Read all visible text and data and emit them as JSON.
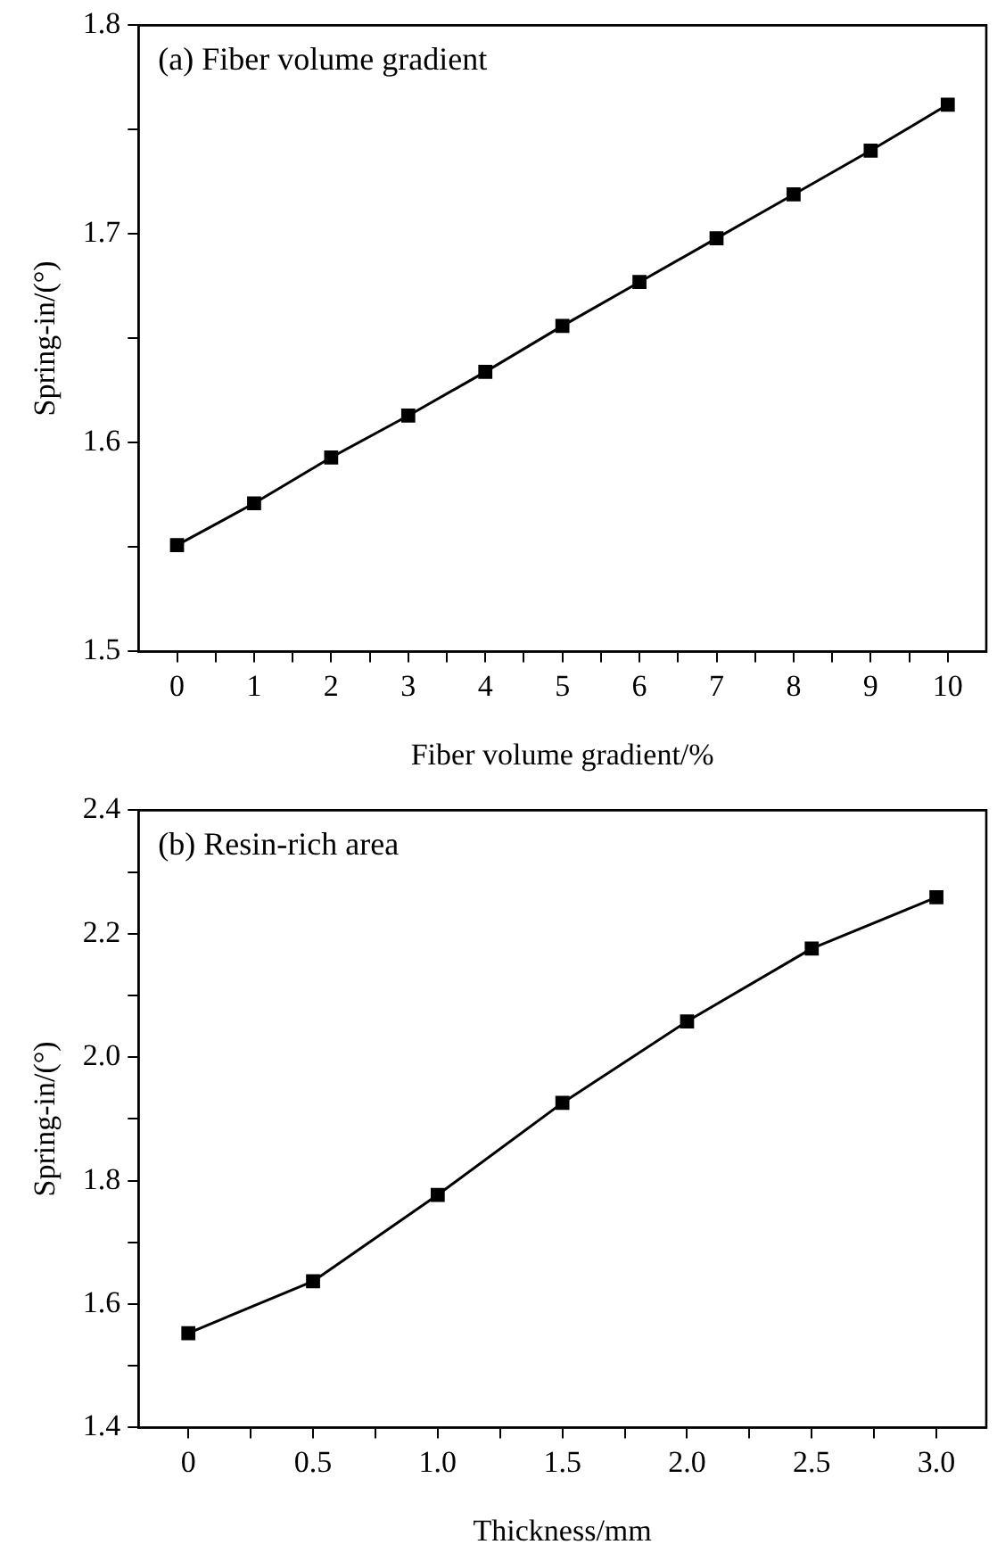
{
  "chart_data": [
    {
      "type": "line",
      "title": "(a) Fiber volume gradient",
      "xlabel": "Fiber volume gradient/%",
      "ylabel": "Spring-in/(°)",
      "x": [
        0,
        1,
        2,
        3,
        4,
        5,
        6,
        7,
        8,
        9,
        10
      ],
      "series": [
        {
          "color": "#000000",
          "values": [
            1.551,
            1.571,
            1.593,
            1.613,
            1.634,
            1.656,
            1.677,
            1.698,
            1.719,
            1.74,
            1.762
          ]
        }
      ],
      "xlim": [
        -0.5,
        10.5
      ],
      "xticks": [
        0,
        {
          "value": 0.5,
          "label": null
        },
        1,
        {
          "value": 1.5,
          "label": null
        },
        2,
        {
          "value": 2.5,
          "label": null
        },
        3,
        {
          "value": 3.5,
          "label": null
        },
        4,
        {
          "value": 4.5,
          "label": null
        },
        5,
        {
          "value": 5.5,
          "label": null
        },
        6,
        {
          "value": 6.5,
          "label": null
        },
        7,
        {
          "value": 7.5,
          "label": null
        },
        8,
        {
          "value": 8.5,
          "label": null
        },
        9,
        {
          "value": 9.5,
          "label": null
        },
        10
      ],
      "ylim": [
        1.5,
        1.8
      ],
      "yticks": [
        1.5,
        {
          "value": 1.55,
          "label": null
        },
        1.6,
        {
          "value": 1.65,
          "label": null
        },
        1.7,
        {
          "value": 1.75,
          "label": null
        },
        1.8
      ],
      "legend": false,
      "marker": "square",
      "line_style": "solid"
    },
    {
      "type": "line",
      "title": "(b) Resin-rich area",
      "xlabel": "Thickness/mm",
      "ylabel": "Spring-in/(°)",
      "x": [
        0,
        0.5,
        1,
        1.5,
        2,
        2.5,
        3
      ],
      "series": [
        {
          "color": "#000000",
          "values": [
            1.553,
            1.637,
            1.777,
            1.926,
            2.058,
            2.176,
            2.259
          ]
        }
      ],
      "xlim": [
        -0.2,
        3.2
      ],
      "xticks": [
        0,
        {
          "value": 0.25,
          "label": null
        },
        0.5,
        {
          "value": 0.75,
          "label": null
        },
        {
          "value": 1,
          "label": "1.0"
        },
        {
          "value": 1.25,
          "label": null
        },
        1.5,
        {
          "value": 1.75,
          "label": null
        },
        {
          "value": 2,
          "label": "2.0"
        },
        {
          "value": 2.25,
          "label": null
        },
        2.5,
        {
          "value": 2.75,
          "label": null
        },
        {
          "value": 3,
          "label": "3.0"
        }
      ],
      "ylim": [
        1.4,
        2.4
      ],
      "yticks": [
        1.4,
        {
          "value": 1.5,
          "label": null
        },
        1.6,
        {
          "value": 1.7,
          "label": null
        },
        {
          "value": 1.8,
          "label": "1.8"
        },
        {
          "value": 1.9,
          "label": null
        },
        {
          "value": 2,
          "label": "2.0"
        },
        {
          "value": 2.1,
          "label": null
        },
        2.2,
        {
          "value": 2.3,
          "label": null
        },
        2.4
      ],
      "legend": false,
      "marker": "square",
      "line_style": "solid"
    }
  ]
}
